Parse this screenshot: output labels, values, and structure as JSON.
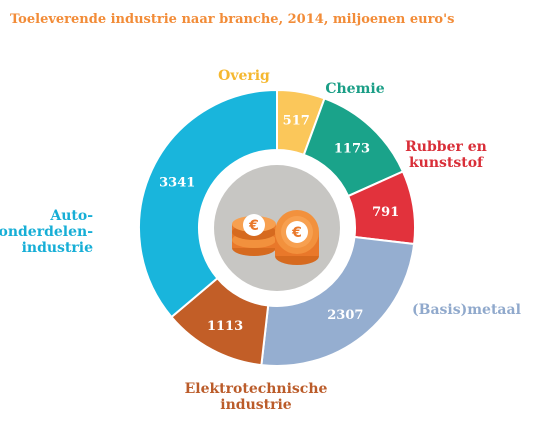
{
  "chart_data": {
    "type": "pie",
    "title": "Toeleverende industrie naar branche, 2014, miljoenen euro's",
    "center_icon": "euro-coins-icon",
    "slices": [
      {
        "label": "Overig",
        "value": 517,
        "value_label": "517",
        "color": "#fbc75a",
        "label_color": "#f5b830"
      },
      {
        "label": "Chemie",
        "value": 1173,
        "value_label": "1173",
        "color": "#1aa38a",
        "label_color": "#1a9e86"
      },
      {
        "label": "Rubber en\nkunststof",
        "value": 791,
        "value_label": "791",
        "color": "#e2323c",
        "label_color": "#d92e38"
      },
      {
        "label": "(Basis)metaal",
        "value": 2307,
        "value_label": "2307",
        "color": "#95aed0",
        "label_color": "#90a9cc"
      },
      {
        "label": "Elektrotechnische\nindustrie",
        "value": 1113,
        "value_label": "1113",
        "color": "#c25e27",
        "label_color": "#bb5c2a"
      },
      {
        "label": "Auto-\nonderdelen-\nindustrie",
        "value": 3341,
        "value_label": "3341",
        "color": "#19b5dc",
        "label_color": "#16aed6"
      }
    ]
  }
}
